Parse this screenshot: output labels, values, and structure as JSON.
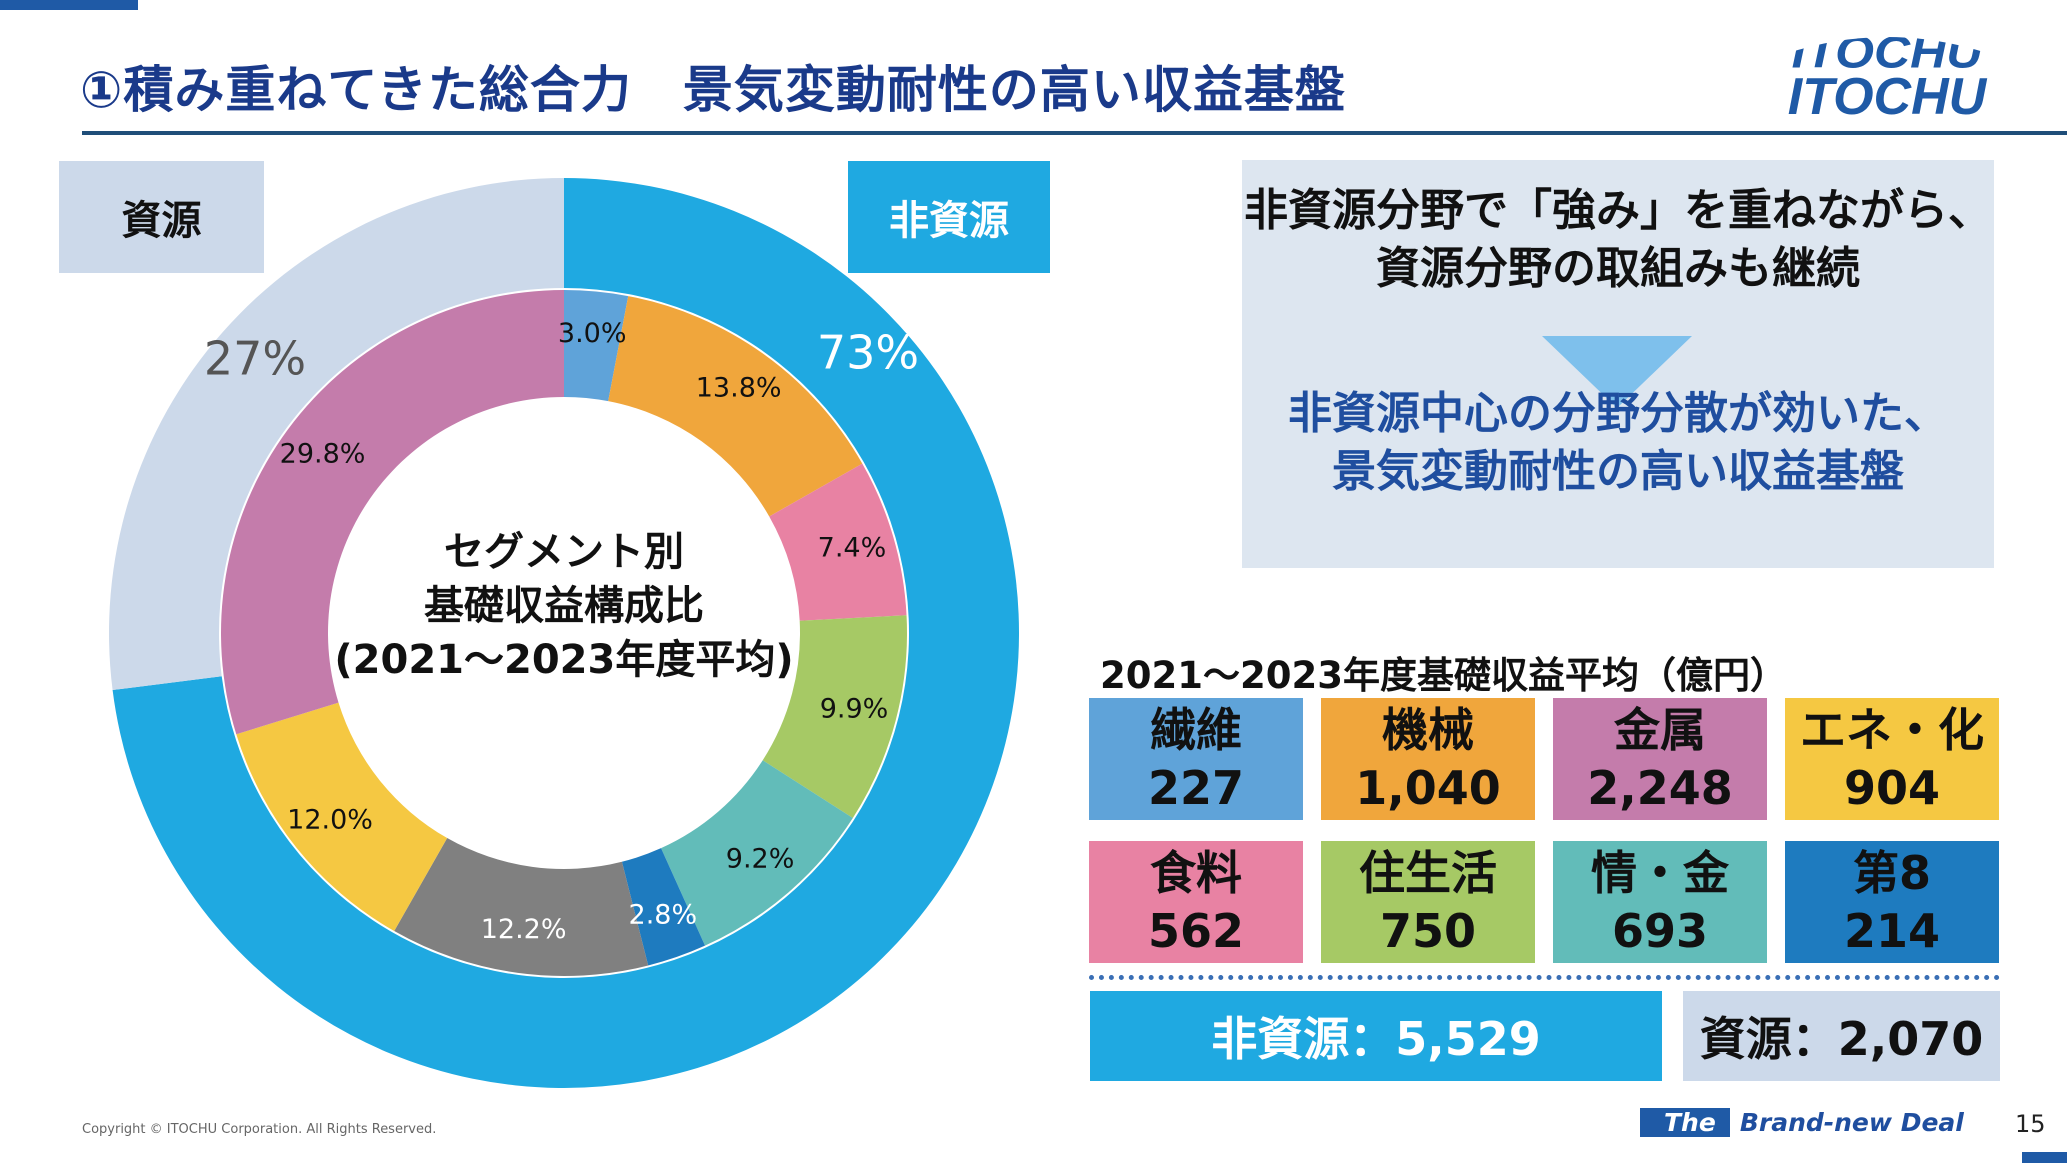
{
  "header": {
    "title": "①積み重ねてきた総合力　景気変動耐性の高い収益基盤",
    "logo_text": "ITOCHU"
  },
  "tags": {
    "resource": "資源",
    "non_resource": "非資源"
  },
  "colors": {
    "accent": "#1fa9e1",
    "navy": "#1a3a8a",
    "resource_light": "#ccd9ea"
  },
  "chart_data": {
    "type": "pie",
    "title": "セグメント別\n基礎収益構成比\n(2021～2023年度平均)",
    "center_lines": [
      "セグメント別",
      "基礎収益構成比",
      "(2021～2023年度平均)"
    ],
    "outer_ring": [
      {
        "name": "非資源",
        "value": 73,
        "label": "73%",
        "color": "#1fa9e1"
      },
      {
        "name": "資源",
        "value": 27,
        "label": "27%",
        "color": "#ccd9ea"
      }
    ],
    "inner_ring": [
      {
        "segment": "繊維",
        "value": 3.0,
        "label": "3.0%",
        "color": "#5fa3d9"
      },
      {
        "segment": "機械",
        "value": 13.8,
        "label": "13.8%",
        "color": "#f0a63c"
      },
      {
        "segment": "食料",
        "value": 7.4,
        "label": "7.4%",
        "color": "#e882a3"
      },
      {
        "segment": "住生活",
        "value": 9.9,
        "label": "9.9%",
        "color": "#a6c965"
      },
      {
        "segment": "情・金",
        "value": 9.2,
        "label": "9.2%",
        "color": "#62bcb9"
      },
      {
        "segment": "第8",
        "value": 2.8,
        "label": "2.8%",
        "color": "#1e7bbf"
      },
      {
        "segment": "",
        "value": 12.2,
        "label": "12.2%",
        "color": "#808080"
      },
      {
        "segment": "エネ・化",
        "value": 12.0,
        "label": "12.0%",
        "color": "#f5c842"
      },
      {
        "segment": "金属",
        "value": 29.8,
        "label": "29.8%",
        "color": "#c47cab"
      }
    ]
  },
  "message": {
    "line1": "非資源分野で「強み」を重ねながら、",
    "line2": "資源分野の取組みも継続",
    "line3": "非資源中心の分野分散が効いた、",
    "line4": "景気変動耐性の高い収益基盤"
  },
  "table": {
    "title": "2021～2023年度基礎収益平均（億円）",
    "segments": [
      {
        "name": "繊維",
        "value": "227",
        "color": "#5fa3d9"
      },
      {
        "name": "機械",
        "value": "1,040",
        "color": "#f0a63c"
      },
      {
        "name": "金属",
        "value": "2,248",
        "color": "#c47cab"
      },
      {
        "name": "エネ・化",
        "value": "904",
        "color": "#f5c842"
      },
      {
        "name": "食料",
        "value": "562",
        "color": "#e882a3"
      },
      {
        "name": "住生活",
        "value": "750",
        "color": "#a6c965"
      },
      {
        "name": "情・金",
        "value": "693",
        "color": "#62bcb9"
      },
      {
        "name": "第8",
        "value": "214",
        "color": "#1e7bbf"
      }
    ],
    "non_resource_total": "非資源：5,529",
    "resource_total": "資源：2,070"
  },
  "footer": {
    "copyright": "Copyright © ITOCHU Corporation. All Rights Reserved.",
    "slogan_the": "The",
    "slogan_rest": "Brand-new Deal",
    "page": "15"
  }
}
